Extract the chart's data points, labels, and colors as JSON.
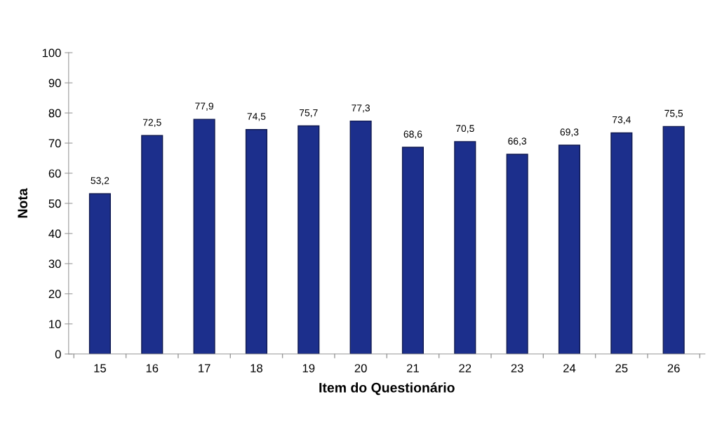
{
  "chart_data": {
    "type": "bar",
    "xlabel": "Item do Questionário",
    "ylabel": "Nota",
    "categories": [
      "15",
      "16",
      "17",
      "18",
      "19",
      "20",
      "21",
      "22",
      "23",
      "24",
      "25",
      "26"
    ],
    "values": [
      53.2,
      72.5,
      77.9,
      74.5,
      75.7,
      77.3,
      68.6,
      70.5,
      66.3,
      69.3,
      73.4,
      75.5
    ],
    "value_labels": [
      "53,2",
      "72,5",
      "77,9",
      "74,5",
      "75,7",
      "77,3",
      "68,6",
      "70,5",
      "66,3",
      "69,3",
      "73,4",
      "75,5"
    ],
    "color": "#1c2f8c",
    "ylim": [
      0,
      100
    ],
    "yticks": [
      0,
      10,
      20,
      30,
      40,
      50,
      60,
      70,
      80,
      90,
      100
    ],
    "grid": false,
    "legend": false
  }
}
